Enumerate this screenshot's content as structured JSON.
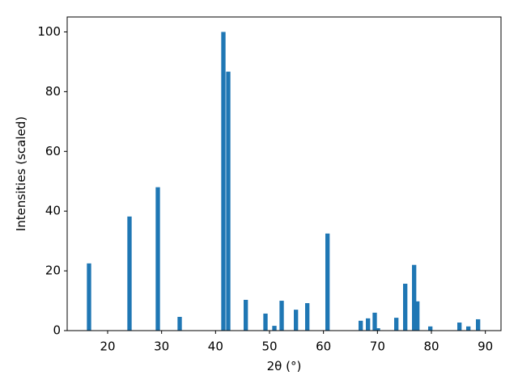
{
  "chart_data": {
    "type": "bar",
    "xlabel": "2θ (°)",
    "ylabel": "Intensities (scaled)",
    "x": [
      16.55,
      24.05,
      29.3,
      33.35,
      41.45,
      42.35,
      45.6,
      49.25,
      50.9,
      52.25,
      54.9,
      57.0,
      60.75,
      66.9,
      68.25,
      69.5,
      70.1,
      73.5,
      75.15,
      76.8,
      77.4,
      79.8,
      85.2,
      86.85,
      88.65
    ],
    "values": [
      22.5,
      38.2,
      48,
      4.6,
      100,
      86.7,
      10.3,
      5.7,
      1.6,
      10,
      7,
      9.2,
      32.5,
      3.3,
      4.1,
      6,
      0.8,
      4.3,
      15.7,
      22,
      9.8,
      1.4,
      2.7,
      1.4,
      3.8
    ],
    "color": "#1f77b4",
    "xlim": [
      12.5,
      92.9
    ],
    "xticks": [
      20,
      30,
      40,
      50,
      60,
      70,
      80,
      90
    ],
    "ylim": [
      0,
      105
    ],
    "yticks": [
      0,
      20,
      40,
      60,
      80,
      100
    ],
    "grid": false
  }
}
